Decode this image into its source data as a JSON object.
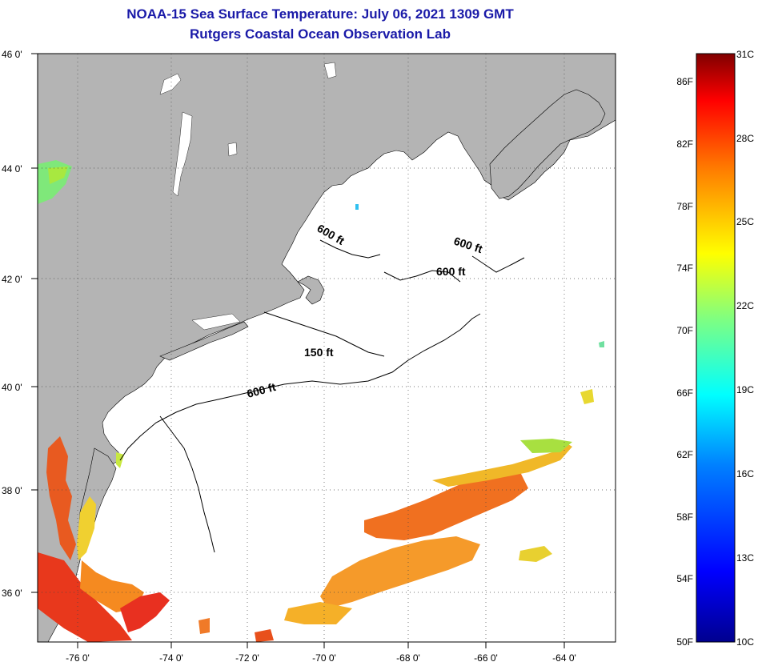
{
  "title": {
    "line1": "NOAA-15 Sea Surface Temperature:  July 06, 2021 1309 GMT",
    "line2": "Rutgers Coastal Ocean Observation Lab"
  },
  "map": {
    "lon_range": [
      -77,
      -63
    ],
    "lat_range": [
      35,
      46
    ],
    "lon_ticks": [
      "-76 0'",
      "-74 0'",
      "-72 0'",
      "-70 0'",
      "-68 0'",
      "-66 0'",
      "-64 0'"
    ],
    "lat_ticks": [
      "46 0'",
      "44 0'",
      "42 0'",
      "40 0'",
      "38 0'",
      "36 0'"
    ],
    "land_color": "#b4b4b4",
    "ocean_color": "#ffffff",
    "grid": "dotted"
  },
  "contours": [
    {
      "label": "600 ft"
    },
    {
      "label": "600 ft"
    },
    {
      "label": "600 ft"
    },
    {
      "label": "150 ft"
    },
    {
      "label": "600 ft"
    }
  ],
  "colorbar": {
    "fahrenheit_labels": [
      "86F",
      "82F",
      "78F",
      "74F",
      "70F",
      "66F",
      "62F",
      "58F",
      "54F",
      "50F"
    ],
    "celsius_labels": [
      "31C",
      "28C",
      "25C",
      "22C",
      "19C",
      "16C",
      "13C",
      "10C"
    ],
    "colors": [
      "#00008f",
      "#0000ff",
      "#0080ff",
      "#00ffff",
      "#80ff80",
      "#ffff00",
      "#ff8000",
      "#ff0000",
      "#800000"
    ]
  }
}
